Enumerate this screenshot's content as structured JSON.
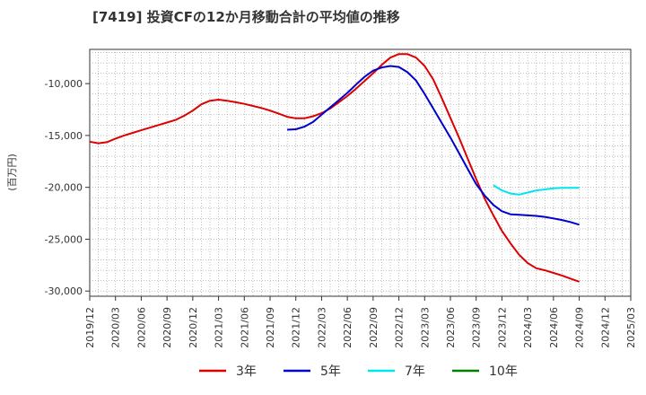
{
  "chart_title": "[7419]  投資CFの12か月移動合計の平均値の推移",
  "chart_data": {
    "type": "line",
    "title": "[7419]  投資CFの12か月移動合計の平均値の推移",
    "ylabel": "(百万円)",
    "xlabel": "",
    "x_range": [
      "2019-12",
      "2025-03"
    ],
    "ylim": [
      -30500,
      -6700
    ],
    "y_ticks": [
      -10000,
      -15000,
      -20000,
      -25000,
      -30000
    ],
    "y_tick_labels": [
      "-10,000",
      "-15,000",
      "-20,000",
      "-25,000",
      "-30,000"
    ],
    "x_tick_labels": [
      "2019/12",
      "2020/03",
      "2020/06",
      "2020/09",
      "2020/12",
      "2021/03",
      "2021/06",
      "2021/09",
      "2021/12",
      "2022/03",
      "2022/06",
      "2022/09",
      "2022/12",
      "2023/03",
      "2023/06",
      "2023/09",
      "2023/12",
      "2024/03",
      "2024/06",
      "2024/09",
      "2024/12",
      "2025/03"
    ],
    "grid": true,
    "legend_position": "bottom",
    "series": [
      {
        "name": "3年",
        "color": "#dd0000",
        "x": [
          "2019-12",
          "2020-01",
          "2020-02",
          "2020-03",
          "2020-04",
          "2020-05",
          "2020-06",
          "2020-07",
          "2020-08",
          "2020-09",
          "2020-10",
          "2020-11",
          "2020-12",
          "2021-01",
          "2021-02",
          "2021-03",
          "2021-04",
          "2021-05",
          "2021-06",
          "2021-07",
          "2021-08",
          "2021-09",
          "2021-10",
          "2021-11",
          "2021-12",
          "2022-01",
          "2022-02",
          "2022-03",
          "2022-04",
          "2022-05",
          "2022-06",
          "2022-07",
          "2022-08",
          "2022-09",
          "2022-10",
          "2022-11",
          "2022-12",
          "2023-01",
          "2023-02",
          "2023-03",
          "2023-04",
          "2023-05",
          "2023-06",
          "2023-07",
          "2023-08",
          "2023-09",
          "2023-10",
          "2023-11",
          "2023-12",
          "2024-01",
          "2024-02",
          "2024-03",
          "2024-04",
          "2024-05",
          "2024-06",
          "2024-07",
          "2024-08",
          "2024-09"
        ],
        "values": [
          -15600,
          -15750,
          -15650,
          -15300,
          -15000,
          -14750,
          -14500,
          -14250,
          -14000,
          -13750,
          -13500,
          -13100,
          -12600,
          -12000,
          -11650,
          -11550,
          -11650,
          -11800,
          -11950,
          -12150,
          -12350,
          -12600,
          -12900,
          -13200,
          -13350,
          -13350,
          -13150,
          -12850,
          -12400,
          -11800,
          -11200,
          -10500,
          -9750,
          -9000,
          -8200,
          -7500,
          -7150,
          -7150,
          -7500,
          -8300,
          -9600,
          -11400,
          -13300,
          -15200,
          -17200,
          -19200,
          -21100,
          -22700,
          -24200,
          -25400,
          -26500,
          -27300,
          -27800,
          -28000,
          -28250,
          -28500,
          -28800,
          -29100
        ]
      },
      {
        "name": "5年",
        "color": "#0000cc",
        "x": [
          "2021-11",
          "2021-12",
          "2022-01",
          "2022-02",
          "2022-03",
          "2022-04",
          "2022-05",
          "2022-06",
          "2022-07",
          "2022-08",
          "2022-09",
          "2022-10",
          "2022-11",
          "2022-12",
          "2023-01",
          "2023-02",
          "2023-03",
          "2023-04",
          "2023-05",
          "2023-06",
          "2023-07",
          "2023-08",
          "2023-09",
          "2023-10",
          "2023-11",
          "2023-12",
          "2024-01",
          "2024-02",
          "2024-03",
          "2024-04",
          "2024-05",
          "2024-06",
          "2024-07",
          "2024-08",
          "2024-09"
        ],
        "values": [
          -14450,
          -14400,
          -14150,
          -13700,
          -13000,
          -12300,
          -11600,
          -10900,
          -10100,
          -9350,
          -8750,
          -8450,
          -8300,
          -8400,
          -8900,
          -9700,
          -11000,
          -12400,
          -13800,
          -15200,
          -16700,
          -18200,
          -19700,
          -20800,
          -21700,
          -22300,
          -22600,
          -22650,
          -22700,
          -22750,
          -22850,
          -23000,
          -23150,
          -23350,
          -23600
        ]
      },
      {
        "name": "7年",
        "color": "#00e5ee",
        "x": [
          "2023-11",
          "2023-12",
          "2024-01",
          "2024-02",
          "2024-03",
          "2024-04",
          "2024-05",
          "2024-06",
          "2024-07",
          "2024-08",
          "2024-09"
        ],
        "values": [
          -19800,
          -20300,
          -20600,
          -20700,
          -20500,
          -20300,
          -20200,
          -20100,
          -20050,
          -20050,
          -20050
        ]
      },
      {
        "name": "10年",
        "color": "#008000",
        "x": [],
        "values": []
      }
    ]
  }
}
